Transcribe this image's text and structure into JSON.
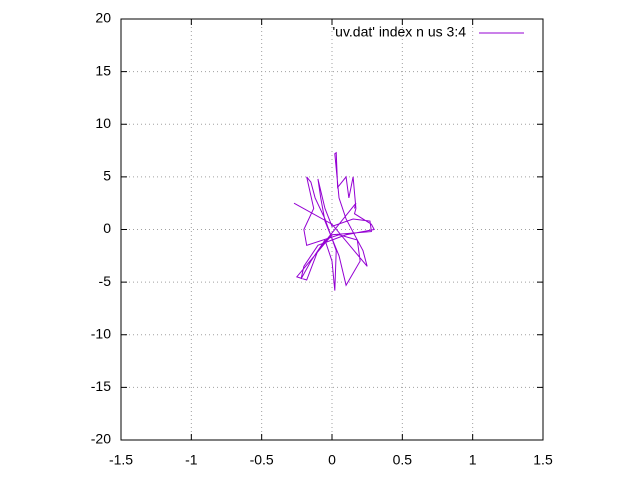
{
  "chart_data": {
    "type": "line",
    "x": [
      -0.27,
      0.0,
      0.25,
      0.22,
      0.1,
      0.05,
      0.02,
      0.03,
      0.04,
      0.1,
      0.12,
      0.15,
      0.17,
      0.16,
      0.28,
      0.3,
      0.1,
      -0.1,
      -0.2,
      -0.22,
      -0.15,
      -0.05,
      0.0,
      0.02,
      0.03,
      -0.05,
      -0.12,
      -0.15,
      -0.18,
      -0.13,
      -0.2,
      -0.18,
      0.05,
      0.18,
      0.2,
      0.1,
      0.05,
      -0.05,
      -0.08,
      -0.1,
      -0.05,
      0.0,
      0.15,
      0.27,
      0.28,
      0.0,
      -0.25,
      -0.18,
      -0.1,
      0.08,
      0.17,
      0.16
    ],
    "series": [
      {
        "name": "'uv.dat' index n us 3:4",
        "color": "#9400d3",
        "values": [
          2.5,
          0.5,
          -3.5,
          -2,
          1,
          3,
          7.2,
          7.3,
          4,
          5,
          3,
          5,
          2,
          1.5,
          0.5,
          0,
          -0.5,
          -1.5,
          -3.5,
          -4.7,
          -3,
          -1,
          -3,
          -5.8,
          -2,
          1,
          3,
          4.5,
          5,
          2,
          0,
          -1.5,
          -0.5,
          -1,
          -3,
          -5.3,
          -2.5,
          0.8,
          3,
          4.8,
          2,
          0.3,
          1,
          0.8,
          -0.2,
          -0.5,
          -4.5,
          -4.8,
          -2,
          1,
          2.5,
          2
        ]
      }
    ],
    "xlim": [
      -1.5,
      1.5
    ],
    "ylim": [
      -20,
      20
    ],
    "xticks": [
      -1.5,
      -1,
      -0.5,
      0,
      0.5,
      1,
      1.5
    ],
    "yticks": [
      -20,
      -15,
      -10,
      -5,
      0,
      5,
      10,
      15,
      20
    ],
    "grid": true,
    "legend": "top-right"
  }
}
